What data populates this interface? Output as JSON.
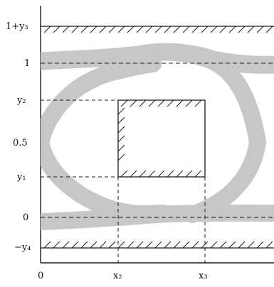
{
  "colors": {
    "eye_band": "#c7c7c7",
    "lines": "#1a1a1a"
  },
  "labels": {
    "y_axis": {
      "one_plus_y3": "1+y₃",
      "one": "1",
      "y2": "y₂",
      "half": "0.5",
      "y1": "y₁",
      "zero": "0",
      "minus_y4": "−y₄"
    },
    "x_axis": {
      "zero": "0",
      "x2": "x₂",
      "x3": "x₃"
    }
  }
}
